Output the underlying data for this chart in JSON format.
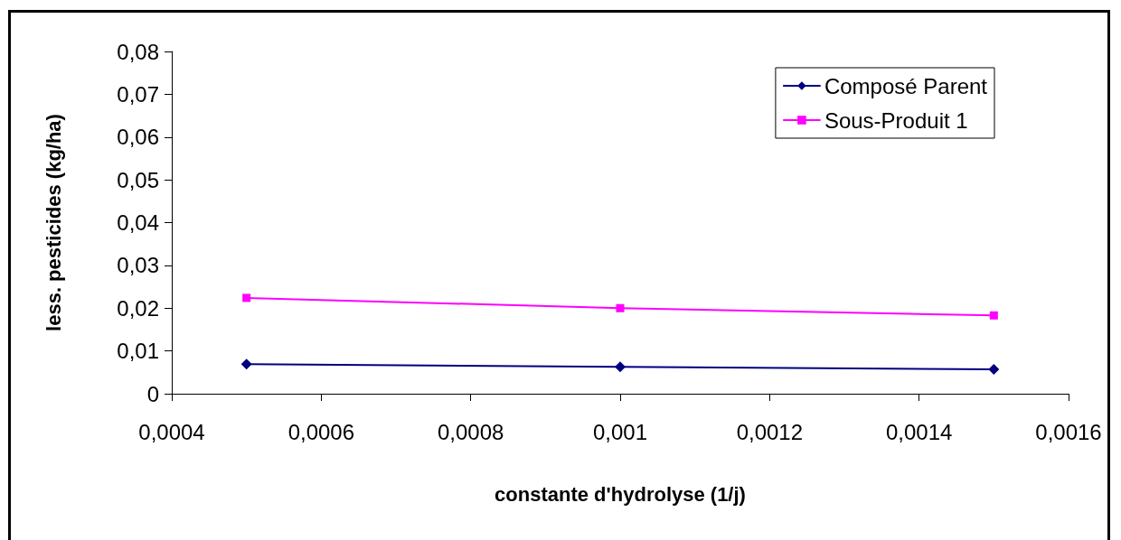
{
  "chart_data": {
    "type": "line",
    "xlabel": "constante d'hydrolyse (1/j)",
    "ylabel": "less. pesticides (kg/ha)",
    "x": [
      0.0005,
      0.001,
      0.0015
    ],
    "series": [
      {
        "name": "Composé Parent",
        "color": "#000080",
        "marker": "diamond",
        "values": [
          0.0069,
          0.0063,
          0.0057
        ]
      },
      {
        "name": "Sous-Produit 1",
        "color": "#ff00ff",
        "marker": "square",
        "values": [
          0.0224,
          0.02,
          0.0183
        ]
      }
    ],
    "xlim": [
      0.0004,
      0.0016
    ],
    "xticks": [
      {
        "value": 0.0004,
        "label": "0,0004"
      },
      {
        "value": 0.0006,
        "label": "0,0006"
      },
      {
        "value": 0.0008,
        "label": "0,0008"
      },
      {
        "value": 0.001,
        "label": "0,001"
      },
      {
        "value": 0.0012,
        "label": "0,0012"
      },
      {
        "value": 0.0014,
        "label": "0,0014"
      },
      {
        "value": 0.0016,
        "label": "0,0016"
      }
    ],
    "ylim": [
      0,
      0.08
    ],
    "yticks": [
      0,
      {
        "value": 0.01,
        "label": "0,01"
      },
      {
        "value": 0.02,
        "label": "0,02"
      },
      {
        "value": 0.03,
        "label": "0,03"
      },
      {
        "value": 0.04,
        "label": "0,04"
      },
      {
        "value": 0.05,
        "label": "0,05"
      },
      {
        "value": 0.06,
        "label": "0,06"
      },
      {
        "value": 0.07,
        "label": "0,07"
      },
      {
        "value": 0.08,
        "label": "0,08"
      }
    ],
    "grid": false,
    "legend": "top right",
    "line_style": "solid"
  }
}
